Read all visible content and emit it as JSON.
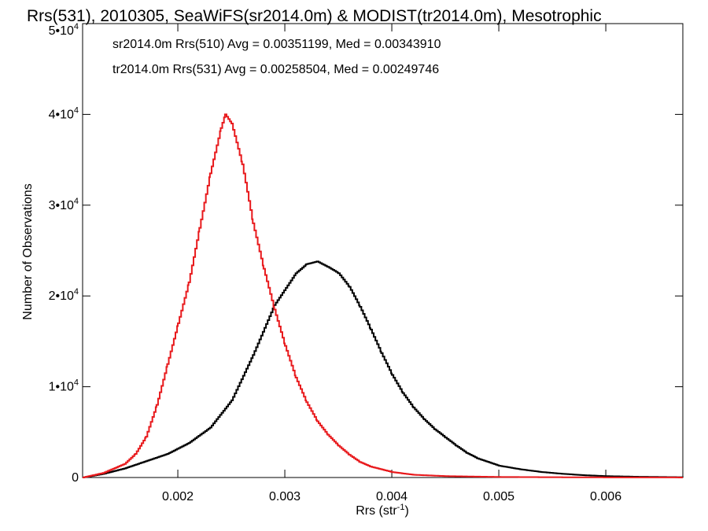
{
  "chart_data": {
    "type": "line",
    "title": "Rrs(531), 2010305, SeaWiFS(sr2014.0m) & MODIST(tr2014.0m), Mesotrophic",
    "xlabel_base": "Rrs (str",
    "xlabel_sup": "-1",
    "xlabel_end": ")",
    "ylabel": "Number of Observations",
    "xlim": [
      0.00111,
      0.00672
    ],
    "ylim": [
      0,
      50000
    ],
    "x_ticks": [
      {
        "value": 0.002,
        "label": "0.002"
      },
      {
        "value": 0.003,
        "label": "0.003"
      },
      {
        "value": 0.004,
        "label": "0.004"
      },
      {
        "value": 0.005,
        "label": "0.005"
      },
      {
        "value": 0.006,
        "label": "0.006"
      }
    ],
    "y_ticks": [
      {
        "value": 0,
        "label": "0",
        "exp": ""
      },
      {
        "value": 10000,
        "label": "1•10",
        "exp": "4"
      },
      {
        "value": 20000,
        "label": "2•10",
        "exp": "4"
      },
      {
        "value": 30000,
        "label": "3•10",
        "exp": "4"
      },
      {
        "value": 40000,
        "label": "4•10",
        "exp": "4"
      },
      {
        "value": 50000,
        "label": "5•10",
        "exp": "4"
      }
    ],
    "legend": [
      {
        "text": "sr2014.0m Rrs(510) Avg = 0.00351199, Med = 0.00343910",
        "color": "#000000"
      },
      {
        "text": "tr2014.0m Rrs(531) Avg = 0.00258504, Med = 0.00249746",
        "color": "#e8191c"
      }
    ],
    "series": [
      {
        "color": "#000000",
        "points": [
          [
            0.00111,
            0
          ],
          [
            0.0013,
            400
          ],
          [
            0.0015,
            1000
          ],
          [
            0.0017,
            1800
          ],
          [
            0.0019,
            2600
          ],
          [
            0.0021,
            3800
          ],
          [
            0.0023,
            5500
          ],
          [
            0.0025,
            8500
          ],
          [
            0.0027,
            13500
          ],
          [
            0.0029,
            19000
          ],
          [
            0.0031,
            22500
          ],
          [
            0.0032,
            23500
          ],
          [
            0.0033,
            23800
          ],
          [
            0.0034,
            23200
          ],
          [
            0.0035,
            22500
          ],
          [
            0.0036,
            21000
          ],
          [
            0.0037,
            18800
          ],
          [
            0.0038,
            16300
          ],
          [
            0.0039,
            13700
          ],
          [
            0.004,
            11300
          ],
          [
            0.0041,
            9300
          ],
          [
            0.0042,
            7700
          ],
          [
            0.0043,
            6400
          ],
          [
            0.0044,
            5300
          ],
          [
            0.0045,
            4400
          ],
          [
            0.0046,
            3500
          ],
          [
            0.0047,
            2700
          ],
          [
            0.0048,
            2100
          ],
          [
            0.005,
            1300
          ],
          [
            0.0052,
            900
          ],
          [
            0.0054,
            600
          ],
          [
            0.0056,
            400
          ],
          [
            0.0058,
            250
          ],
          [
            0.006,
            150
          ],
          [
            0.0063,
            80
          ],
          [
            0.00672,
            30
          ]
        ]
      },
      {
        "color": "#e8191c",
        "points": [
          [
            0.00111,
            0
          ],
          [
            0.0013,
            500
          ],
          [
            0.0015,
            1500
          ],
          [
            0.0016,
            2600
          ],
          [
            0.0017,
            4500
          ],
          [
            0.0018,
            8000
          ],
          [
            0.0019,
            12500
          ],
          [
            0.002,
            17000
          ],
          [
            0.0021,
            21500
          ],
          [
            0.0022,
            27500
          ],
          [
            0.0023,
            33500
          ],
          [
            0.0024,
            38500
          ],
          [
            0.00244,
            40000
          ],
          [
            0.0025,
            39000
          ],
          [
            0.0026,
            34500
          ],
          [
            0.0027,
            28000
          ],
          [
            0.0028,
            23000
          ],
          [
            0.0029,
            18500
          ],
          [
            0.003,
            14500
          ],
          [
            0.0031,
            11000
          ],
          [
            0.0032,
            8300
          ],
          [
            0.0033,
            6200
          ],
          [
            0.0034,
            4700
          ],
          [
            0.0035,
            3500
          ],
          [
            0.0036,
            2500
          ],
          [
            0.0037,
            1700
          ],
          [
            0.0038,
            1200
          ],
          [
            0.004,
            600
          ],
          [
            0.0042,
            300
          ],
          [
            0.0045,
            150
          ],
          [
            0.005,
            60
          ],
          [
            0.0055,
            30
          ],
          [
            0.006,
            15
          ],
          [
            0.00672,
            5
          ]
        ]
      }
    ]
  }
}
